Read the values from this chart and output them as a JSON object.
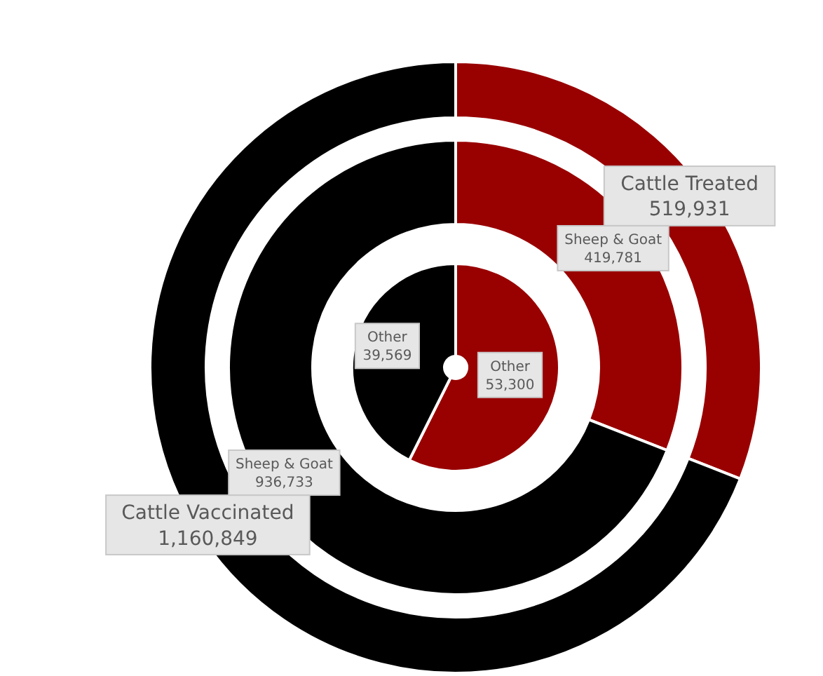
{
  "chart_data": {
    "type": "donut",
    "categories": [
      "Cattle Treated",
      "Cattle Vaccinated"
    ],
    "series": [
      {
        "values": [
          519931,
          1160849
        ],
        "value_labels": [
          "519,931",
          "1,160,849"
        ],
        "colors": [
          "#990000",
          "#000000"
        ]
      },
      {
        "name": "Sheep & Goat",
        "values": [
          419781,
          936733
        ],
        "value_labels": [
          "419,781",
          "936,733"
        ],
        "colors": [
          "#990000",
          "#000000"
        ]
      },
      {
        "name": "Other",
        "values": [
          53300,
          39569
        ],
        "value_labels": [
          "53,300",
          "39,569"
        ],
        "colors": [
          "#990000",
          "#000000"
        ]
      }
    ]
  }
}
